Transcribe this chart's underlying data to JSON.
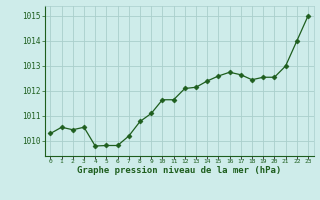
{
  "x": [
    0,
    1,
    2,
    3,
    4,
    5,
    6,
    7,
    8,
    9,
    10,
    11,
    12,
    13,
    14,
    15,
    16,
    17,
    18,
    19,
    20,
    21,
    22,
    23
  ],
  "y": [
    1010.3,
    1010.55,
    1010.45,
    1010.55,
    1009.8,
    1009.82,
    1009.82,
    1010.2,
    1010.78,
    1011.1,
    1011.65,
    1011.65,
    1012.1,
    1012.15,
    1012.4,
    1012.6,
    1012.75,
    1012.65,
    1012.45,
    1012.55,
    1012.55,
    1013.0,
    1014.0,
    1015.0
  ],
  "line_color": "#1e5e1e",
  "marker": "D",
  "marker_size": 2.5,
  "bg_color": "#ceecea",
  "grid_color": "#aacfcc",
  "xlabel": "Graphe pression niveau de la mer (hPa)",
  "xlabel_color": "#1e5e1e",
  "tick_color": "#1e5e1e",
  "ylim": [
    1009.4,
    1015.4
  ],
  "yticks": [
    1010,
    1011,
    1012,
    1013,
    1014,
    1015
  ],
  "xlim": [
    -0.5,
    23.5
  ]
}
